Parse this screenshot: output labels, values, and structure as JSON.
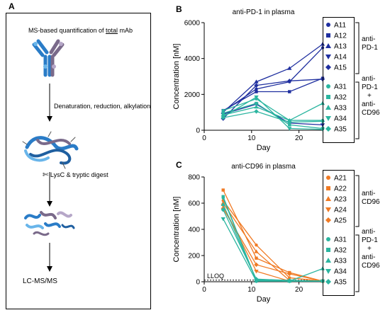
{
  "panelA": {
    "letter": "A",
    "title_pre": "MS-based quantification of ",
    "title_u": "total",
    "title_post": " mAb",
    "step1": "Denaturation, reduction, alkylation",
    "step2": "LysC & tryptic digest",
    "step3": "LC-MS/MS",
    "scissors_icon": "scissors-icon"
  },
  "panelB": {
    "letter": "B",
    "group1_label": [
      "anti-",
      "PD-1"
    ],
    "group2_label": [
      "anti-",
      "PD-1",
      "+",
      "anti-",
      "CD96"
    ]
  },
  "panelC": {
    "letter": "C",
    "lloq": "LLOQ",
    "group1_label": [
      "anti-",
      "CD96"
    ],
    "group2_label": [
      "anti-",
      "PD-1",
      "+",
      "anti-",
      "CD96"
    ]
  },
  "colors": {
    "blue": "#1f2f9f",
    "teal": "#2bb5a0",
    "orange": "#f07a24"
  },
  "chart_data": [
    {
      "type": "line",
      "title": "anti-PD-1 in plasma",
      "xlabel": "Day",
      "ylabel": "Concentration [nM]",
      "xlim": [
        0,
        25
      ],
      "ylim": [
        0,
        6000
      ],
      "xticks": [
        0,
        10,
        20
      ],
      "yticks": [
        0,
        2000,
        4000,
        6000
      ],
      "x": [
        4,
        11,
        18,
        25
      ],
      "series": [
        {
          "name": "A11",
          "color": "#1f2f9f",
          "marker": "circle",
          "values": [
            1050,
            2300,
            2700,
            4600
          ]
        },
        {
          "name": "A12",
          "color": "#1f2f9f",
          "marker": "square",
          "values": [
            1100,
            2150,
            2150,
            2900
          ]
        },
        {
          "name": "A13",
          "color": "#1f2f9f",
          "marker": "triangle-up",
          "values": [
            1000,
            2700,
            3450,
            4800
          ]
        },
        {
          "name": "A14",
          "color": "#1f2f9f",
          "marker": "triangle-down",
          "values": [
            900,
            1450,
            400,
            300
          ]
        },
        {
          "name": "A15",
          "color": "#1f2f9f",
          "marker": "diamond",
          "values": [
            650,
            2500,
            2750,
            2850
          ]
        },
        {
          "name": "A31",
          "color": "#2bb5a0",
          "marker": "circle",
          "values": [
            1100,
            1750,
            550,
            550
          ]
        },
        {
          "name": "A32",
          "color": "#2bb5a0",
          "marker": "square",
          "values": [
            950,
            1500,
            300,
            100
          ]
        },
        {
          "name": "A33",
          "color": "#2bb5a0",
          "marker": "triangle-up",
          "values": [
            850,
            1300,
            550,
            1500
          ]
        },
        {
          "name": "A34",
          "color": "#2bb5a0",
          "marker": "triangle-down",
          "values": [
            750,
            1850,
            100,
            50
          ]
        },
        {
          "name": "A35",
          "color": "#2bb5a0",
          "marker": "diamond",
          "values": [
            700,
            1050,
            450,
            500
          ]
        }
      ]
    },
    {
      "type": "line",
      "title": "anti-CD96 in plasma",
      "xlabel": "Day",
      "ylabel": "Concentration [nM]",
      "xlim": [
        0,
        25
      ],
      "ylim": [
        0,
        800
      ],
      "xticks": [
        0,
        10,
        20
      ],
      "yticks": [
        0,
        200,
        400,
        600,
        800
      ],
      "x": [
        4,
        11,
        18,
        25
      ],
      "lloq_value": 12,
      "series": [
        {
          "name": "A21",
          "color": "#f07a24",
          "marker": "circle",
          "values": [
            620,
            280,
            30,
            5
          ]
        },
        {
          "name": "A22",
          "color": "#f07a24",
          "marker": "square",
          "values": [
            700,
            180,
            70,
            5
          ]
        },
        {
          "name": "A23",
          "color": "#f07a24",
          "marker": "triangle-up",
          "values": [
            600,
            230,
            10,
            5
          ]
        },
        {
          "name": "A24",
          "color": "#f07a24",
          "marker": "triangle-down",
          "values": [
            580,
            80,
            5,
            5
          ]
        },
        {
          "name": "A25",
          "color": "#f07a24",
          "marker": "diamond",
          "values": [
            560,
            130,
            60,
            5
          ]
        },
        {
          "name": "A31",
          "color": "#2bb5a0",
          "marker": "circle",
          "values": [
            640,
            10,
            5,
            5
          ]
        },
        {
          "name": "A32",
          "color": "#2bb5a0",
          "marker": "square",
          "values": [
            650,
            5,
            5,
            5
          ]
        },
        {
          "name": "A33",
          "color": "#2bb5a0",
          "marker": "triangle-up",
          "values": [
            590,
            15,
            5,
            100
          ]
        },
        {
          "name": "A34",
          "color": "#2bb5a0",
          "marker": "triangle-down",
          "values": [
            480,
            5,
            5,
            5
          ]
        },
        {
          "name": "A35",
          "color": "#2bb5a0",
          "marker": "diamond",
          "values": [
            550,
            20,
            10,
            5
          ]
        }
      ]
    }
  ]
}
